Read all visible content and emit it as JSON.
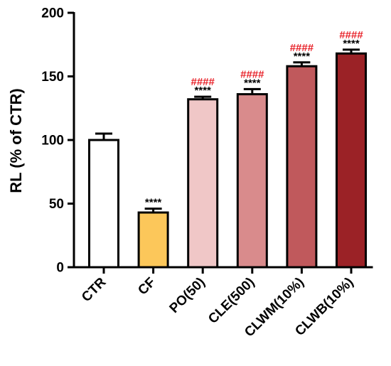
{
  "chart_data": {
    "type": "bar",
    "categories": [
      "CTR",
      "CF",
      "PO(50)",
      "CLE(500)",
      "CLWM(10%)",
      "CLWB(10%)"
    ],
    "values": [
      100,
      43,
      132,
      136,
      158,
      168
    ],
    "errors": [
      5,
      3,
      2,
      4,
      3,
      3
    ],
    "bar_colors": [
      "#ffffff",
      "#fcc75a",
      "#f0c7c7",
      "#d98b8c",
      "#c0595c",
      "#9b2226"
    ],
    "significance_stars": [
      "",
      "****",
      "****",
      "****",
      "****",
      "****"
    ],
    "significance_hash": [
      "",
      "",
      "####",
      "####",
      "####",
      "####"
    ],
    "ylabel": "RL (% of CTR)",
    "xlabel": "",
    "ylim": [
      0,
      200
    ],
    "yticks": [
      0,
      50,
      100,
      150,
      200
    ],
    "ytick_labels": [
      "0",
      "50",
      "100",
      "150",
      "200"
    ],
    "grid": false,
    "hash_color": "#e8232a"
  }
}
